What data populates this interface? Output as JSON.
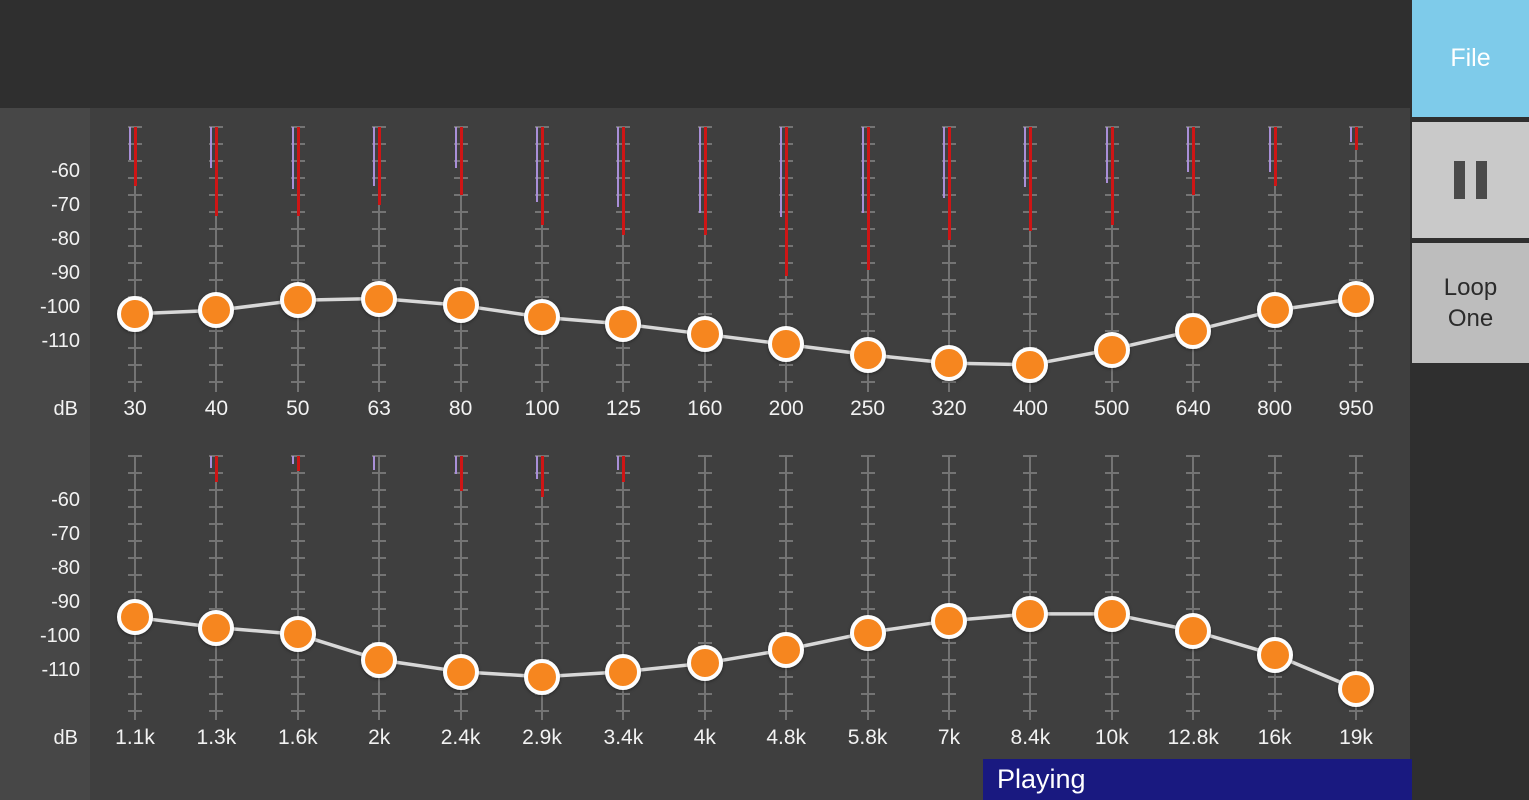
{
  "colors": {
    "page_bg": "#2f2f2f",
    "panel_bg": "#3f3f3f",
    "axis_strip_bg": "#474747",
    "track": "#747474",
    "curve": "#d8d8d8",
    "knob_fill": "#f6861f",
    "knob_border": "#fdfdfd",
    "meter_red": "#ce1515",
    "meter_purple": "#a98fd8",
    "file_button_bg": "#7ecbea",
    "pause_button_bg": "#c9c9c9",
    "loop_button_bg": "#bdbdbd",
    "pause_icon": "#4a4a4a",
    "status_bg": "#191980",
    "text_light": "#f2f2f2",
    "text_dark": "#2b2b2b"
  },
  "sidebar": {
    "file_button": {
      "label": "File"
    },
    "pause_button": {
      "icon": "pause-icon"
    },
    "loop_button": {
      "label": "Loop One"
    }
  },
  "status": {
    "label": "Playing"
  },
  "eq": {
    "unit_label": "dB",
    "axis_ticks": [
      "-60",
      "-70",
      "-80",
      "-90",
      "-100",
      "-110"
    ],
    "rows": [
      {
        "name": "low-frequency-row",
        "bands": [
          {
            "freq": "30",
            "gain_db": -102,
            "meter_red": 39,
            "meter_purple": 22
          },
          {
            "freq": "40",
            "gain_db": -101,
            "meter_red": 59,
            "meter_purple": 27
          },
          {
            "freq": "50",
            "gain_db": -98,
            "meter_red": 59,
            "meter_purple": 41
          },
          {
            "freq": "63",
            "gain_db": -97.5,
            "meter_red": 52,
            "meter_purple": 39
          },
          {
            "freq": "80",
            "gain_db": -99.5,
            "meter_red": 45,
            "meter_purple": 27
          },
          {
            "freq": "100",
            "gain_db": -103,
            "meter_red": 65,
            "meter_purple": 50
          },
          {
            "freq": "125",
            "gain_db": -105,
            "meter_red": 72,
            "meter_purple": 53
          },
          {
            "freq": "160",
            "gain_db": -108,
            "meter_red": 72,
            "meter_purple": 57
          },
          {
            "freq": "200",
            "gain_db": -111,
            "meter_red": 99,
            "meter_purple": 60
          },
          {
            "freq": "250",
            "gain_db": -114,
            "meter_red": 95,
            "meter_purple": 57
          },
          {
            "freq": "320",
            "gain_db": -116.5,
            "meter_red": 75,
            "meter_purple": 47
          },
          {
            "freq": "400",
            "gain_db": -117,
            "meter_red": 69,
            "meter_purple": 40
          },
          {
            "freq": "500",
            "gain_db": -112.5,
            "meter_red": 65,
            "meter_purple": 37
          },
          {
            "freq": "640",
            "gain_db": -107,
            "meter_red": 45,
            "meter_purple": 30
          },
          {
            "freq": "800",
            "gain_db": -101,
            "meter_red": 39,
            "meter_purple": 30
          },
          {
            "freq": "950",
            "gain_db": -97.5,
            "meter_red": 15,
            "meter_purple": 10
          }
        ]
      },
      {
        "name": "high-frequency-row",
        "bands": [
          {
            "freq": "1.1k",
            "gain_db": -94.5,
            "meter_red": 0,
            "meter_purple": 0
          },
          {
            "freq": "1.3k",
            "gain_db": -97.5,
            "meter_red": 17,
            "meter_purple": 8
          },
          {
            "freq": "1.6k",
            "gain_db": -99.5,
            "meter_red": 10,
            "meter_purple": 5
          },
          {
            "freq": "2k",
            "gain_db": -107,
            "meter_red": 0,
            "meter_purple": 9
          },
          {
            "freq": "2.4k",
            "gain_db": -110.5,
            "meter_red": 23,
            "meter_purple": 12
          },
          {
            "freq": "2.9k",
            "gain_db": -112,
            "meter_red": 27,
            "meter_purple": 15
          },
          {
            "freq": "3.4k",
            "gain_db": -110.5,
            "meter_red": 17,
            "meter_purple": 9
          },
          {
            "freq": "4k",
            "gain_db": -108,
            "meter_red": 0,
            "meter_purple": 0
          },
          {
            "freq": "4.8k",
            "gain_db": -104,
            "meter_red": 0,
            "meter_purple": 0
          },
          {
            "freq": "5.8k",
            "gain_db": -99,
            "meter_red": 0,
            "meter_purple": 0
          },
          {
            "freq": "7k",
            "gain_db": -95.5,
            "meter_red": 0,
            "meter_purple": 0
          },
          {
            "freq": "8.4k",
            "gain_db": -93.5,
            "meter_red": 0,
            "meter_purple": 0
          },
          {
            "freq": "10k",
            "gain_db": -93.5,
            "meter_red": 0,
            "meter_purple": 0
          },
          {
            "freq": "12.8k",
            "gain_db": -98.5,
            "meter_red": 0,
            "meter_purple": 0
          },
          {
            "freq": "16k",
            "gain_db": -105.5,
            "meter_red": 0,
            "meter_purple": 0
          },
          {
            "freq": "19k",
            "gain_db": -115.5,
            "meter_red": 0,
            "meter_purple": 0
          }
        ]
      }
    ]
  }
}
